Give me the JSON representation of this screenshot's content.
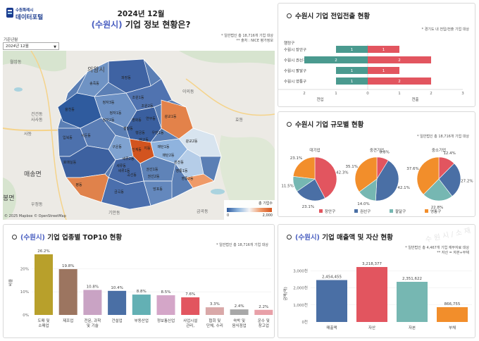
{
  "header": {
    "logo_line1": "수원특례시",
    "logo_line2": "데이터포털",
    "date": "2024년 12월",
    "title_city": "(수원시)",
    "title_rest": " 기업 정보 현황은?"
  },
  "filter": {
    "label": "기준년월",
    "selected": "2024년 12월"
  },
  "map": {
    "note_line1": "* 일반법인 총 18,716개 기업 대상",
    "note_line2": "** 출처 : NICE 평가정보",
    "copyright": "© 2025 Mapbox © OpenStreetMap",
    "legend_title": "총 기업수",
    "legend_min": "0",
    "legend_max": "2,000",
    "places": [
      "의왕시",
      "매송면",
      "봉면"
    ],
    "places_small": [
      "월암동",
      "사사동",
      "건건동",
      "사동",
      "우정동",
      "기안동",
      "금곡동",
      "이의동",
      "효동"
    ],
    "dong_labels": [
      "파장동",
      "송죽동",
      "조원1동",
      "조원2동",
      "연무동",
      "정자3동",
      "정자1동",
      "정자2동",
      "영화동",
      "광교1동",
      "율천동",
      "팔달동",
      "행궁동",
      "입북동",
      "서둔동",
      "구운동",
      "세류동",
      "인계동",
      "매탄1동",
      "매탄2동",
      "원천동",
      "광교2동",
      "권선1동",
      "권선2동",
      "곡선동",
      "영통1동",
      "영통2동",
      "망포동",
      "평동",
      "금곡동",
      "호매실동",
      "세류1동",
      "세류2동",
      "매교동",
      "우만1동",
      "지동"
    ]
  },
  "transfer": {
    "title": "수원시 기업 전입전출 현황",
    "note": "* 경기도 내 전입/전출 기업 대상",
    "row_header": "행정구",
    "rows": [
      {
        "district": "수원시 장안구",
        "in": 1,
        "out": 1
      },
      {
        "district": "수원시 권선구",
        "in": 2,
        "out": 2
      },
      {
        "district": "수원시 팔달구",
        "in": 1,
        "out": 1
      },
      {
        "district": "수원시 영통구",
        "in": 1,
        "out": 2
      }
    ],
    "axis_in_label": "전입",
    "axis_out_label": "전출",
    "ticks_left": [
      "3",
      "2",
      "1",
      "0"
    ],
    "ticks_right": [
      "1",
      "2",
      "3"
    ],
    "in_color": "#4a9a8f",
    "out_color": "#e2555f"
  },
  "size": {
    "title": "수원시 기업 규모별 현황",
    "note": "* 일반법인 총 18,716개 기업 대상",
    "legend": [
      "장안구",
      "권선구",
      "팔달구",
      "영통구"
    ],
    "colors": [
      "#e2555f",
      "#4a6fa5",
      "#76b7b2",
      "#f28e2b"
    ]
  },
  "top10": {
    "title_city": "(수원시)",
    "title_rest": " 기업 업종별 TOP10 현황",
    "note": "* 일반법인 총 18,716개 기업 대상",
    "ylabel": "비율"
  },
  "sales": {
    "title_city": "(수원시)",
    "title_rest": " 기업 매출액 및 자산 현황",
    "note_line1": "* 일반법인 총 4,467개 기업 재무자료 대상",
    "note_line2": "** 자산 = 자본+부채",
    "ylabel": "금액(억)",
    "watermark": "수 원 시 / 소 재"
  },
  "chart_data": [
    {
      "type": "bar",
      "title": "수원시 기업 전입전출 현황",
      "categories": [
        "수원시 장안구",
        "수원시 권선구",
        "수원시 팔달구",
        "수원시 영통구"
      ],
      "series": [
        {
          "name": "전입",
          "values": [
            1,
            2,
            1,
            1
          ]
        },
        {
          "name": "전출",
          "values": [
            1,
            2,
            1,
            2
          ]
        }
      ],
      "xlim": [
        -3,
        3
      ],
      "orientation": "horizontal"
    },
    {
      "type": "pie",
      "title": "대기업",
      "labels": [
        "장안구",
        "권선구",
        "팔달구",
        "영통구"
      ],
      "values": [
        42.3,
        23.1,
        11.5,
        23.1
      ]
    },
    {
      "type": "pie",
      "title": "중견기업",
      "labels": [
        "장안구",
        "권선구",
        "팔달구",
        "영통구"
      ],
      "values": [
        8.8,
        42.1,
        14.0,
        35.1
      ]
    },
    {
      "type": "pie",
      "title": "중소기업",
      "labels": [
        "장안구",
        "권선구",
        "팔달구",
        "영통구"
      ],
      "values": [
        12.4,
        27.2,
        22.8,
        37.6
      ]
    },
    {
      "type": "bar",
      "title": "(수원시) 기업 업종별 TOP10 현황",
      "ylabel": "비율",
      "categories": [
        "도매 및 소매업",
        "제조업",
        "전문, 과학 및 기술 서비스..",
        "건설업",
        "부동산업",
        "정보통신업",
        "사업시설 관리, 사..",
        "협회 및 단체, 수리 및 기..",
        "숙박 및 음식점업",
        "운수 및 창고업"
      ],
      "values": [
        26.2,
        19.8,
        10.8,
        10.4,
        8.8,
        8.5,
        7.6,
        3.3,
        2.4,
        2.2
      ],
      "value_labels": [
        "26.2%",
        "19.8%",
        "10.8%",
        "10.4%",
        "8.8%",
        "8.5%",
        "7.6%",
        "3.3%",
        "2.4%",
        "2.2%"
      ],
      "yticks": [
        "0%",
        "10%",
        "20%"
      ],
      "ylim": [
        0,
        28
      ],
      "colors": [
        "#b8a02b",
        "#9c7560",
        "#c9a3c4",
        "#4a6fa5",
        "#63b0b4",
        "#d4a6c8",
        "#e2555f",
        "#d9a8a8",
        "#a8a8a8",
        "#e8a0a8"
      ]
    },
    {
      "type": "bar",
      "title": "(수원시) 기업 매출액 및 자산 현황",
      "ylabel": "금액(억)",
      "categories": [
        "매출액",
        "자산",
        "자본",
        "부채"
      ],
      "values": [
        2454455,
        3218377,
        2351622,
        866755
      ],
      "value_labels": [
        "2,454,455",
        "3,218,377",
        "2,351,622",
        "866,755"
      ],
      "yticks": [
        "0천",
        "1,000천",
        "2,000천",
        "3,000천"
      ],
      "ylim": [
        0,
        3300000
      ],
      "colors": [
        "#4a6fa5",
        "#e2555f",
        "#76b7b2",
        "#f28e2b"
      ]
    }
  ]
}
